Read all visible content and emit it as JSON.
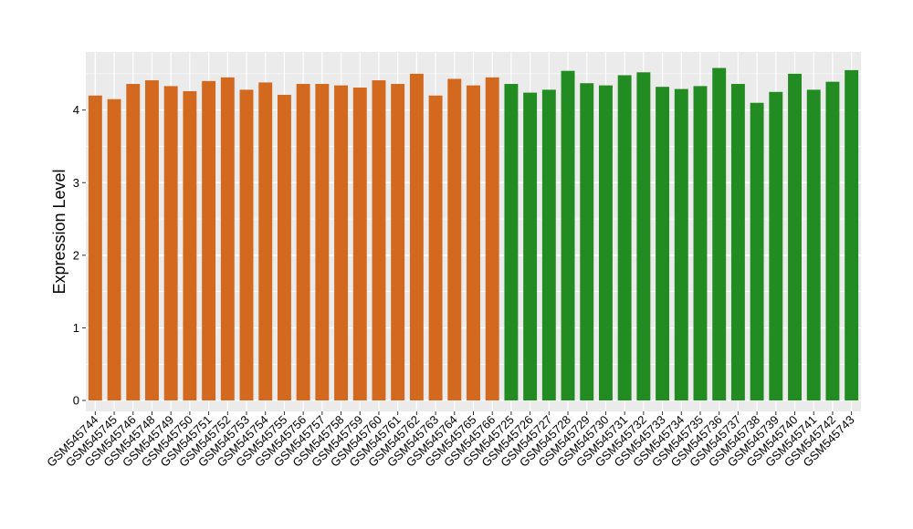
{
  "chart_data": {
    "type": "bar",
    "ylabel": "Expression Level",
    "xlabel": "",
    "title": "",
    "ylim": [
      -0.15,
      4.8
    ],
    "yticks": [
      0,
      1,
      2,
      3,
      4
    ],
    "grid": true,
    "colors": {
      "group1": "#D2691E",
      "group2": "#228B22",
      "panel_bg": "#EBEBEB",
      "grid": "#FFFFFF"
    },
    "categories": [
      "GSM545744",
      "GSM545745",
      "GSM545746",
      "GSM545748",
      "GSM545749",
      "GSM545750",
      "GSM545751",
      "GSM545752",
      "GSM545753",
      "GSM545754",
      "GSM545755",
      "GSM545756",
      "GSM545757",
      "GSM545758",
      "GSM545759",
      "GSM545760",
      "GSM545761",
      "GSM545762",
      "GSM545763",
      "GSM545764",
      "GSM545765",
      "GSM545766",
      "GSM545725",
      "GSM545726",
      "GSM545727",
      "GSM545728",
      "GSM545729",
      "GSM545730",
      "GSM545731",
      "GSM545732",
      "GSM545733",
      "GSM545734",
      "GSM545735",
      "GSM545736",
      "GSM545737",
      "GSM545738",
      "GSM545739",
      "GSM545740",
      "GSM545741",
      "GSM545742",
      "GSM545743"
    ],
    "values": [
      4.2,
      4.15,
      4.36,
      4.41,
      4.33,
      4.26,
      4.4,
      4.45,
      4.28,
      4.38,
      4.21,
      4.36,
      4.36,
      4.34,
      4.31,
      4.41,
      4.36,
      4.5,
      4.2,
      4.43,
      4.34,
      4.45,
      4.36,
      4.24,
      4.28,
      4.54,
      4.37,
      4.34,
      4.48,
      4.52,
      4.32,
      4.29,
      4.33,
      4.58,
      4.36,
      4.1,
      4.25,
      4.5,
      4.28,
      4.39,
      4.55
    ],
    "groups": [
      "group1",
      "group1",
      "group1",
      "group1",
      "group1",
      "group1",
      "group1",
      "group1",
      "group1",
      "group1",
      "group1",
      "group1",
      "group1",
      "group1",
      "group1",
      "group1",
      "group1",
      "group1",
      "group1",
      "group1",
      "group1",
      "group1",
      "group2",
      "group2",
      "group2",
      "group2",
      "group2",
      "group2",
      "group2",
      "group2",
      "group2",
      "group2",
      "group2",
      "group2",
      "group2",
      "group2",
      "group2",
      "group2",
      "group2",
      "group2",
      "group2"
    ]
  }
}
